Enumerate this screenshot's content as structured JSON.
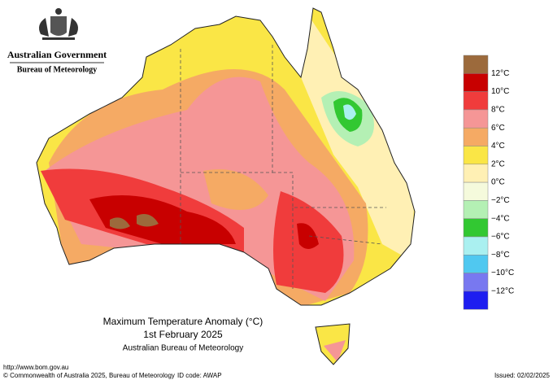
{
  "header": {
    "agency": "Australian Government",
    "bureau": "Bureau of Meteorology"
  },
  "map": {
    "title": "Maximum Temperature Anomaly (°C)",
    "date": "1st February 2025",
    "source": "Australian Bureau of Meteorology"
  },
  "legend": {
    "colors": [
      "#9c6a3c",
      "#c80000",
      "#f03c3c",
      "#f59696",
      "#f5aa64",
      "#fae646",
      "#fff0b4",
      "#f5fadc",
      "#b4f0b4",
      "#32c832",
      "#aaf0f0",
      "#50c8f0",
      "#7878f0",
      "#1e1ef0"
    ],
    "labels": [
      "12°C",
      "10°C",
      "8°C",
      "6°C",
      "4°C",
      "2°C",
      "0°C",
      "−2°C",
      "−4°C",
      "−6°C",
      "−8°C",
      "−10°C",
      "−12°C"
    ]
  },
  "footer": {
    "url": "http://www.bom.gov.au",
    "copyright": "© Commonwealth of Australia 2025, Bureau of Meteorology",
    "id": "ID code: AWAP",
    "issued": "Issued: 02/02/2025"
  }
}
